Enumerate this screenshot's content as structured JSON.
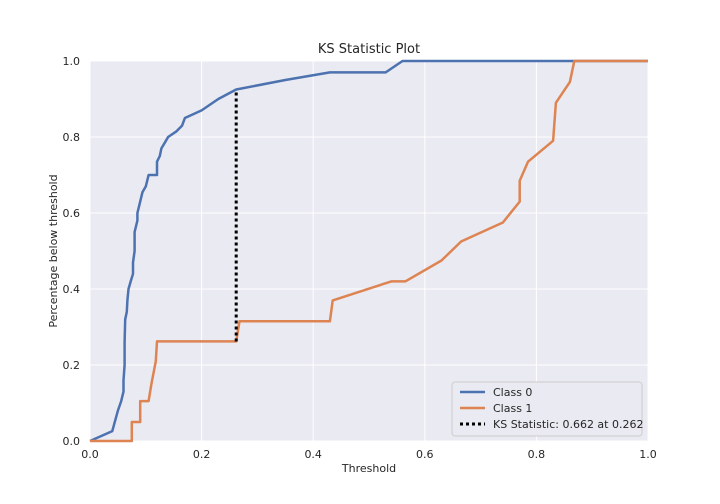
{
  "chart_data": {
    "type": "line",
    "title": "KS Statistic Plot",
    "xlabel": "Threshold",
    "ylabel": "Percentage below threshold",
    "xlim": [
      0.0,
      1.0
    ],
    "ylim": [
      0.0,
      1.0
    ],
    "xticks": [
      "0.0",
      "0.2",
      "0.4",
      "0.6",
      "0.8",
      "1.0"
    ],
    "yticks": [
      "0.0",
      "0.2",
      "0.4",
      "0.6",
      "0.8",
      "1.0"
    ],
    "grid": true,
    "legend_position": "lower-right",
    "series": [
      {
        "name": "Class 0",
        "color": "#4c72b0",
        "points": [
          [
            0.0,
            0.0
          ],
          [
            0.04,
            0.026
          ],
          [
            0.05,
            0.08
          ],
          [
            0.056,
            0.105
          ],
          [
            0.06,
            0.13
          ],
          [
            0.06,
            0.16
          ],
          [
            0.062,
            0.2
          ],
          [
            0.062,
            0.26
          ],
          [
            0.063,
            0.32
          ],
          [
            0.066,
            0.34
          ],
          [
            0.067,
            0.37
          ],
          [
            0.069,
            0.4
          ],
          [
            0.073,
            0.42
          ],
          [
            0.077,
            0.44
          ],
          [
            0.077,
            0.47
          ],
          [
            0.08,
            0.5
          ],
          [
            0.08,
            0.55
          ],
          [
            0.085,
            0.58
          ],
          [
            0.085,
            0.6
          ],
          [
            0.09,
            0.63
          ],
          [
            0.094,
            0.655
          ],
          [
            0.1,
            0.67
          ],
          [
            0.105,
            0.7
          ],
          [
            0.12,
            0.7
          ],
          [
            0.12,
            0.735
          ],
          [
            0.125,
            0.75
          ],
          [
            0.128,
            0.77
          ],
          [
            0.134,
            0.785
          ],
          [
            0.14,
            0.8
          ],
          [
            0.155,
            0.815
          ],
          [
            0.165,
            0.83
          ],
          [
            0.17,
            0.85
          ],
          [
            0.2,
            0.87
          ],
          [
            0.23,
            0.9
          ],
          [
            0.262,
            0.925
          ],
          [
            0.35,
            0.95
          ],
          [
            0.43,
            0.97
          ],
          [
            0.53,
            0.97
          ],
          [
            0.56,
            1.0
          ],
          [
            1.0,
            1.0
          ]
        ]
      },
      {
        "name": "Class 1",
        "color": "#dd8452",
        "points": [
          [
            0.0,
            0.0
          ],
          [
            0.075,
            0.0
          ],
          [
            0.075,
            0.05
          ],
          [
            0.09,
            0.05
          ],
          [
            0.09,
            0.105
          ],
          [
            0.105,
            0.105
          ],
          [
            0.11,
            0.15
          ],
          [
            0.118,
            0.21
          ],
          [
            0.12,
            0.262
          ],
          [
            0.262,
            0.262
          ],
          [
            0.268,
            0.315
          ],
          [
            0.43,
            0.315
          ],
          [
            0.435,
            0.37
          ],
          [
            0.54,
            0.42
          ],
          [
            0.565,
            0.42
          ],
          [
            0.63,
            0.475
          ],
          [
            0.665,
            0.525
          ],
          [
            0.74,
            0.575
          ],
          [
            0.77,
            0.63
          ],
          [
            0.77,
            0.685
          ],
          [
            0.785,
            0.735
          ],
          [
            0.83,
            0.79
          ],
          [
            0.835,
            0.89
          ],
          [
            0.86,
            0.945
          ],
          [
            0.868,
            1.0
          ],
          [
            1.0,
            1.0
          ]
        ]
      }
    ],
    "ks_line": {
      "name": "KS Statistic: 0.662 at 0.262",
      "color": "#000000",
      "x": 0.262,
      "y_low": 0.262,
      "y_high": 0.925
    }
  }
}
